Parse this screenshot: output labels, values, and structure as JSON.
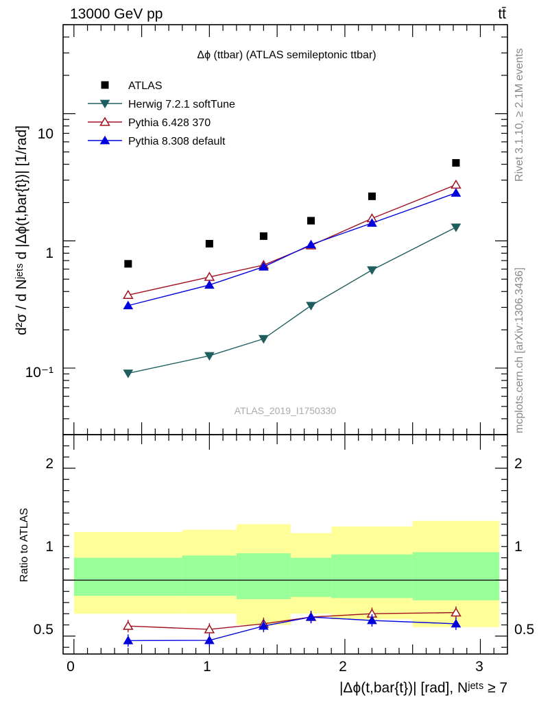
{
  "header": {
    "energy_label": "13000 GeV pp",
    "process_label": "tt̄"
  },
  "side_labels": {
    "rivet": "Rivet 3.1.10, ≥ 2.1M events",
    "mcplots": "mcplots.cern.ch [arXiv:1306.3436]"
  },
  "watermark": "ATLAS_2019_I1750330",
  "chart_data": [
    {
      "type": "scatter",
      "panel": "main",
      "title": "Δϕ (ttbar) (ATLAS semileptonic ttbar)",
      "ylabel": "d²σ / d Nʲᵉᵗˢ d |Δϕ(t,bar{t})| [1/rad]",
      "yscale": "log",
      "xlim": [
        -0.08,
        3.2
      ],
      "ylim": [
        0.03,
        50
      ],
      "y_ticks": [
        "10⁻¹",
        "1",
        "10"
      ],
      "legend_position": "top-left",
      "x": [
        0.4,
        1.0,
        1.4,
        1.75,
        2.2,
        2.82
      ],
      "series": [
        {
          "name": "ATLAS",
          "marker": "square",
          "color": "#000000",
          "values": [
            0.66,
            0.95,
            1.09,
            1.44,
            2.24,
            4.1
          ]
        },
        {
          "name": "Herwig 7.2.1 softTune",
          "marker": "triangle-down",
          "color": "#1f5e5e",
          "values": [
            0.091,
            0.125,
            0.17,
            0.31,
            0.59,
            1.28
          ]
        },
        {
          "name": "Pythia 6.428 370",
          "marker": "triangle-up-open",
          "color": "#a01020",
          "values": [
            0.375,
            0.52,
            0.645,
            0.92,
            1.5,
            2.76
          ]
        },
        {
          "name": "Pythia 8.308 default",
          "marker": "triangle-up",
          "color": "#0000dd",
          "values": [
            0.31,
            0.45,
            0.625,
            0.935,
            1.38,
            2.38
          ]
        }
      ]
    },
    {
      "type": "line",
      "panel": "ratio",
      "ylabel": "Ratio to ATLAS",
      "xlabel": "|Δϕ(t,bar{t})| [rad], Nʲᵉᵗˢ ≥ 7",
      "xlim": [
        -0.08,
        3.2
      ],
      "ylim": [
        0.34,
        2.3
      ],
      "x_ticks": [
        "0",
        "1",
        "2",
        "3"
      ],
      "y_ticks": [
        "0.5",
        "1",
        "2"
      ],
      "bins": [
        [
          0.0,
          0.8
        ],
        [
          0.8,
          1.2
        ],
        [
          1.2,
          1.6
        ],
        [
          1.6,
          1.9
        ],
        [
          1.9,
          2.5
        ],
        [
          2.5,
          3.14
        ]
      ],
      "band_yellow": [
        [
          0.7,
          1.43
        ],
        [
          0.7,
          1.45
        ],
        [
          0.6,
          1.5
        ],
        [
          0.7,
          1.42
        ],
        [
          0.65,
          1.48
        ],
        [
          0.58,
          1.53
        ]
      ],
      "band_green": [
        [
          0.86,
          1.2
        ],
        [
          0.86,
          1.22
        ],
        [
          0.83,
          1.24
        ],
        [
          0.85,
          1.2
        ],
        [
          0.84,
          1.23
        ],
        [
          0.82,
          1.25
        ]
      ],
      "x": [
        0.4,
        1.0,
        1.4,
        1.75,
        2.2,
        2.82
      ],
      "series": [
        {
          "name": "Pythia 6.428 370",
          "marker": "triangle-up-open",
          "color": "#a01020",
          "values": [
            0.59,
            0.56,
            0.61,
            0.67,
            0.7,
            0.71
          ]
        },
        {
          "name": "Pythia 8.308 default",
          "marker": "triangle-up",
          "color": "#0000dd",
          "values": [
            0.46,
            0.462,
            0.59,
            0.67,
            0.64,
            0.61
          ]
        }
      ]
    }
  ]
}
